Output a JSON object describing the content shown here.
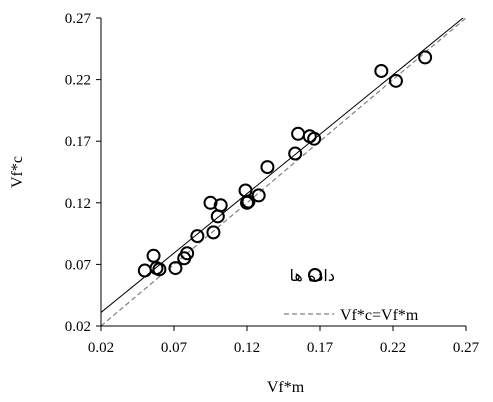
{
  "chart_data": {
    "type": "scatter",
    "xlabel": "Vf*m",
    "ylabel": "Vf*c",
    "xlim": [
      0.02,
      0.27
    ],
    "ylim": [
      0.02,
      0.27
    ],
    "x_ticks": [
      "0.02",
      "0.07",
      "0.12",
      "0.17",
      "0.22",
      "0.27"
    ],
    "y_ticks": [
      "0.02",
      "0.07",
      "0.12",
      "0.17",
      "0.22",
      "0.27"
    ],
    "grid": false,
    "legend_position": "bottom-right",
    "series": [
      {
        "name": "داده ها",
        "marker": "open-circle",
        "x": [
          0.05,
          0.056,
          0.058,
          0.06,
          0.071,
          0.077,
          0.079,
          0.086,
          0.095,
          0.097,
          0.1,
          0.102,
          0.119,
          0.12,
          0.121,
          0.128,
          0.134,
          0.153,
          0.155,
          0.163,
          0.166,
          0.212,
          0.222,
          0.242
        ],
        "y": [
          0.065,
          0.077,
          0.067,
          0.066,
          0.067,
          0.075,
          0.079,
          0.093,
          0.12,
          0.096,
          0.109,
          0.118,
          0.13,
          0.12,
          0.121,
          0.126,
          0.149,
          0.16,
          0.176,
          0.174,
          0.172,
          0.227,
          0.219,
          0.238
        ]
      }
    ],
    "lines": [
      {
        "name": "Vf*c=Vf*m",
        "style": "dashed",
        "color": "#808080",
        "x": [
          0.02,
          0.27
        ],
        "y": [
          0.02,
          0.27
        ]
      },
      {
        "name": "",
        "style": "solid",
        "color": "#000000",
        "x": [
          0.02,
          0.27
        ],
        "y": [
          0.031,
          0.272
        ]
      }
    ]
  }
}
